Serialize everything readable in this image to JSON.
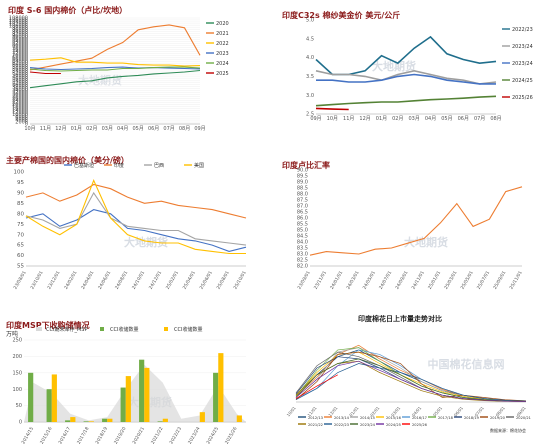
{
  "chart_data": [
    {
      "id": "c1",
      "type": "line",
      "title": "印度 S-6 国内棉价（卢比/坎地）",
      "ylim": [
        0,
        108000
      ],
      "yticks": [
        0,
        2000,
        4000,
        6000,
        8000,
        10000,
        12000,
        14000,
        16000,
        18000,
        20000,
        22000,
        24000,
        26000,
        28000,
        30000,
        32000,
        34000,
        36000,
        38000,
        40000,
        42000,
        44000,
        46000,
        48000,
        50000,
        52000,
        54000,
        56000,
        58000,
        60000,
        62000,
        64000,
        66000,
        68000,
        70000,
        72000,
        74000,
        76000,
        78000,
        80000,
        82000,
        84000,
        86000,
        88000,
        90000,
        92000,
        94000,
        96000,
        98000,
        100000,
        102000,
        104000,
        106000,
        108000
      ],
      "x": [
        "10月",
        "11月",
        "12月",
        "01月",
        "02月",
        "03月",
        "04月",
        "05月",
        "06月",
        "07月",
        "08月",
        "09月"
      ],
      "series": [
        {
          "name": "2020",
          "color": "#2E8B57",
          "values": [
            37000,
            39000,
            41000,
            43000,
            44000,
            47000,
            48500,
            49500,
            51000,
            52000,
            53000,
            54500
          ]
        },
        {
          "name": "2021",
          "color": "#ED7D31",
          "values": [
            55000,
            58000,
            61000,
            64000,
            67000,
            76000,
            83000,
            96000,
            99000,
            101000,
            98000,
            70000
          ]
        },
        {
          "name": "2022",
          "color": "#FFC000",
          "values": [
            65000,
            66000,
            67500,
            63000,
            63000,
            62000,
            62000,
            60500,
            60000,
            60000,
            59000,
            59500
          ]
        },
        {
          "name": "2023",
          "color": "#4472C4",
          "values": [
            57500,
            56000,
            55500,
            56000,
            56500,
            57500,
            58000,
            57000,
            57500,
            57000,
            56500,
            56000
          ]
        },
        {
          "name": "2024",
          "color": "#70AD47",
          "values": [
            56000,
            54500,
            54000,
            54500,
            55000,
            55000,
            56500,
            56500,
            57500,
            58000,
            58000,
            57000
          ]
        },
        {
          "name": "2025",
          "color": "#C00000",
          "values": [
            53000,
            51500,
            51500,
            null,
            null,
            null,
            null,
            null,
            null,
            null,
            null,
            null
          ]
        }
      ],
      "legend_position": "right",
      "watermark": "大地期货"
    },
    {
      "id": "c2",
      "type": "line",
      "title": "印度C32s 棉纱美金价 美元/公斤",
      "ylim": [
        2.5,
        5.0
      ],
      "yticks": [
        2.5,
        3.0,
        3.5,
        4.0,
        4.5,
        5.0
      ],
      "x": [
        "09月",
        "10月",
        "11月",
        "12月",
        "01月",
        "02月",
        "03月",
        "04月",
        "05月",
        "06月",
        "07月",
        "08月"
      ],
      "series": [
        {
          "name": "2022/23",
          "color": "#1F6E8C",
          "values": [
            3.95,
            3.55,
            3.55,
            3.65,
            4.05,
            3.85,
            4.25,
            4.55,
            4.1,
            3.95,
            3.85,
            3.9
          ]
        },
        {
          "name": "2023/24",
          "color": "#9E9E9E",
          "values": [
            3.65,
            3.55,
            3.55,
            3.5,
            3.4,
            3.55,
            3.65,
            3.55,
            3.45,
            3.4,
            3.3,
            3.35
          ]
        },
        {
          "name": "2023/24",
          "color": "#4472C4",
          "values": [
            3.4,
            3.4,
            3.35,
            3.35,
            3.4,
            3.5,
            3.55,
            3.5,
            3.4,
            3.35,
            3.3,
            3.3
          ]
        },
        {
          "name": "2024/25",
          "color": "#548235",
          "values": [
            2.72,
            2.75,
            2.78,
            2.8,
            2.82,
            2.82,
            2.85,
            2.88,
            2.9,
            2.92,
            2.95,
            2.97
          ]
        },
        {
          "name": "2025/26",
          "color": "#C00000",
          "values": [
            2.65,
            2.63,
            2.62,
            null,
            null,
            null,
            null,
            null,
            null,
            null,
            null,
            null
          ]
        }
      ],
      "legend_position": "right",
      "watermark": "大地期货"
    },
    {
      "id": "c3",
      "type": "line",
      "title": "主要产棉国的国内棉价（美分/磅）",
      "ylim": [
        55,
        100
      ],
      "yticks": [
        55,
        60,
        65,
        70,
        75,
        80,
        85,
        90,
        95,
        100
      ],
      "x": [
        "23/08/01",
        "23/10/01",
        "23/12/01",
        "24/02/01",
        "24/04/01",
        "24/06/01",
        "24/08/01",
        "24/10/01",
        "24/12/01",
        "25/02/01",
        "25/04/01",
        "25/06/01",
        "25/08/01",
        "25/10/01"
      ],
      "series": [
        {
          "name": "巴基斯坦",
          "color": "#4472C4",
          "values": [
            78,
            80,
            74,
            77,
            82,
            80,
            73,
            72,
            70,
            68,
            67,
            65,
            62,
            64
          ]
        },
        {
          "name": "印度",
          "color": "#ED7D31",
          "values": [
            88,
            90,
            86,
            89,
            94,
            92,
            88,
            85,
            86,
            84,
            83,
            82,
            80,
            78
          ]
        },
        {
          "name": "巴西",
          "color": "#A5A5A5",
          "values": [
            79,
            77,
            73,
            75,
            90,
            78,
            74,
            73,
            72,
            72,
            68,
            67,
            66,
            65
          ]
        },
        {
          "name": "美国",
          "color": "#FFC000",
          "values": [
            79,
            74,
            70,
            75,
            96,
            78,
            70,
            67,
            66,
            66,
            63,
            62,
            61,
            61
          ]
        }
      ],
      "legend_position": "top",
      "watermark": "大地期货"
    },
    {
      "id": "c4",
      "type": "line",
      "title": "印度卢比汇率",
      "ylim": [
        82.0,
        90.0
      ],
      "yticks": [
        82.0,
        82.5,
        83.0,
        83.5,
        84.0,
        84.5,
        85.0,
        85.5,
        86.0,
        86.5,
        87.0,
        87.5,
        88.0,
        88.5,
        89.0,
        89.5,
        90.0
      ],
      "x": [
        "23/09/01",
        "23/11/01",
        "24/01/01",
        "24/03/01",
        "24/05/01",
        "24/07/01",
        "24/09/01",
        "24/11/01",
        "25/01/01",
        "25/03/01",
        "25/05/01",
        "25/07/01",
        "25/09/01",
        "25/11/01"
      ],
      "series": [
        {
          "name": "印度卢比汇率",
          "color": "#ED7D31",
          "values": [
            82.9,
            83.2,
            83.1,
            83.0,
            83.4,
            83.5,
            83.9,
            84.3,
            85.6,
            87.2,
            85.3,
            85.9,
            88.2,
            88.6
          ]
        }
      ],
      "watermark": "大地期货"
    },
    {
      "id": "c5",
      "type": "bar",
      "title": "印度MSP下收购储情况",
      "unit_label": "万吨",
      "ylim": [
        0,
        250
      ],
      "yticks": [
        0,
        50,
        100,
        150,
        200,
        250
      ],
      "categories": [
        "2014/15",
        "2015/16",
        "2016/17",
        "2017/18",
        "2018/19",
        "2019/20",
        "2020/21",
        "2021/22",
        "2022/23",
        "2023/24",
        "2024/25",
        "2025/26"
      ],
      "series": [
        {
          "name": "CCI期末库存_MSP",
          "color": "#D9D9D9",
          "kind": "area",
          "values": [
            120,
            88,
            25,
            5,
            15,
            100,
            175,
            120,
            10,
            20,
            110,
            25
          ]
        },
        {
          "name": "CCI收储数量",
          "color": "#70AD47",
          "kind": "bar",
          "values": [
            150,
            100,
            5,
            2,
            10,
            105,
            190,
            2,
            0,
            0,
            150,
            0
          ]
        },
        {
          "name": "CCI收储数量",
          "color": "#FFC000",
          "kind": "bar",
          "values": [
            0,
            145,
            15,
            2,
            10,
            140,
            165,
            10,
            0,
            30,
            210,
            20
          ]
        }
      ],
      "legend_position": "top",
      "watermark": "大地期货"
    },
    {
      "id": "c6",
      "type": "line",
      "title": "印度棉花日上市量走势对比",
      "ylim": [
        0,
        300000
      ],
      "x": [
        "10/01",
        "11/01",
        "12/01",
        "01/01",
        "02/01",
        "03/01",
        "04/01",
        "05/01",
        "06/01",
        "07/01",
        "08/01",
        "09/01"
      ],
      "series": [
        {
          "name": "2012/13",
          "color": "#1F4E79",
          "values": [
            30000,
            120000,
            200000,
            230000,
            180000,
            130000,
            90000,
            50000,
            30000,
            15000,
            8000,
            5000
          ]
        },
        {
          "name": "2013/14",
          "color": "#ED7D31",
          "values": [
            25000,
            110000,
            210000,
            250000,
            190000,
            140000,
            100000,
            55000,
            30000,
            15000,
            8000,
            5000
          ]
        },
        {
          "name": "2014/15",
          "color": "#A5A5A5",
          "values": [
            20000,
            100000,
            220000,
            240000,
            200000,
            150000,
            90000,
            50000,
            25000,
            12000,
            6000,
            4000
          ]
        },
        {
          "name": "2015/16",
          "color": "#FFC000",
          "values": [
            30000,
            130000,
            210000,
            220000,
            170000,
            120000,
            80000,
            45000,
            25000,
            12000,
            6000,
            4000
          ]
        },
        {
          "name": "2016/17",
          "color": "#5B9BD5",
          "values": [
            15000,
            60000,
            160000,
            230000,
            210000,
            160000,
            100000,
            60000,
            30000,
            15000,
            8000,
            5000
          ]
        },
        {
          "name": "2017/18",
          "color": "#70AD47",
          "values": [
            25000,
            140000,
            230000,
            240000,
            180000,
            120000,
            70000,
            40000,
            20000,
            10000,
            5000,
            3000
          ]
        },
        {
          "name": "2018/19",
          "color": "#264478",
          "values": [
            35000,
            150000,
            200000,
            190000,
            150000,
            100000,
            60000,
            30000,
            15000,
            8000,
            4000,
            2000
          ]
        },
        {
          "name": "2019/20",
          "color": "#9E480E",
          "values": [
            10000,
            90000,
            210000,
            220000,
            200000,
            170000,
            80000,
            20000,
            30000,
            20000,
            10000,
            5000
          ]
        },
        {
          "name": "2020/21",
          "color": "#636363",
          "values": [
            40000,
            160000,
            220000,
            200000,
            160000,
            110000,
            60000,
            30000,
            15000,
            8000,
            4000,
            2000
          ]
        },
        {
          "name": "2021/22",
          "color": "#997300",
          "values": [
            30000,
            120000,
            170000,
            180000,
            130000,
            90000,
            50000,
            25000,
            12000,
            6000,
            3000,
            2000
          ]
        },
        {
          "name": "2022/23",
          "color": "#255E91",
          "values": [
            10000,
            60000,
            130000,
            170000,
            150000,
            130000,
            100000,
            60000,
            30000,
            15000,
            8000,
            4000
          ]
        },
        {
          "name": "2023/24",
          "color": "#43682B",
          "values": [
            20000,
            120000,
            170000,
            190000,
            160000,
            120000,
            70000,
            40000,
            20000,
            10000,
            5000,
            3000
          ]
        },
        {
          "name": "2024/25",
          "color": "#7030A0",
          "values": [
            20000,
            100000,
            160000,
            180000,
            140000,
            100000,
            60000,
            30000,
            15000,
            8000,
            4000,
            2000
          ]
        },
        {
          "name": "2025/26",
          "color": "#FF0000",
          "values": [
            15000,
            70000,
            120000,
            null,
            null,
            null,
            null,
            null,
            null,
            null,
            null,
            null
          ]
        }
      ],
      "legend_position": "bottom",
      "source_note": "数据来源：棉花协会",
      "watermark": "中国棉花信息网"
    }
  ]
}
